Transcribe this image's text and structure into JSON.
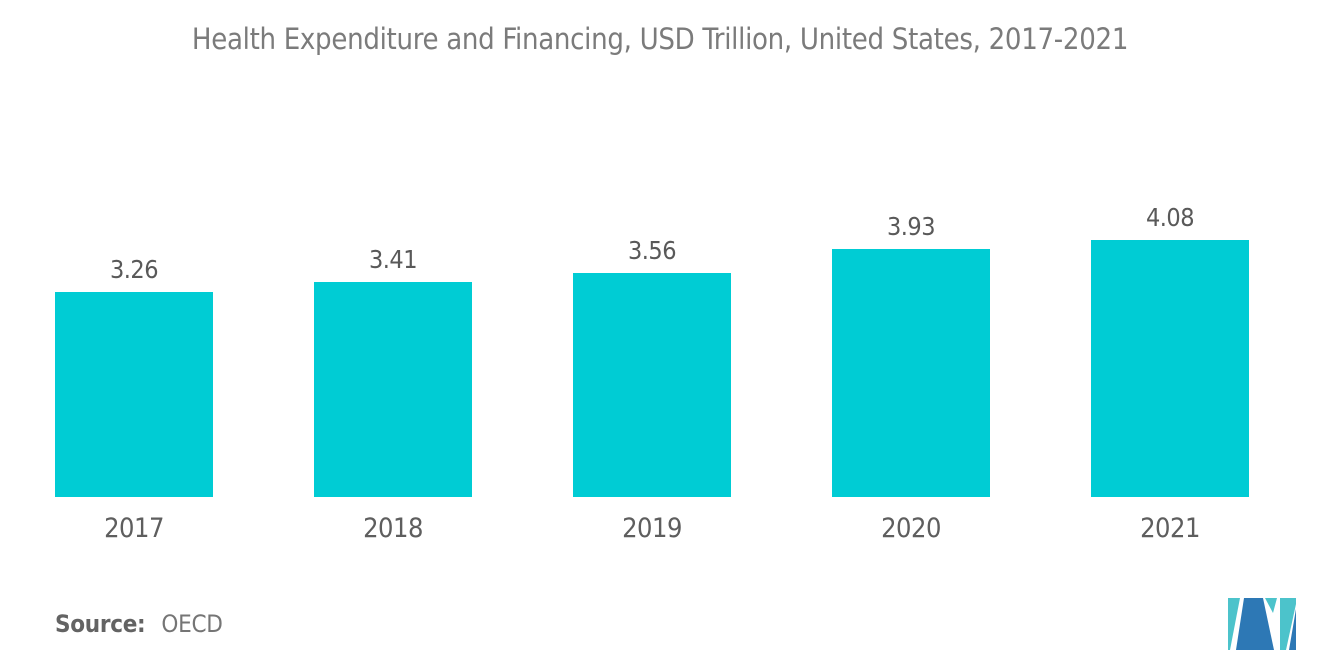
{
  "chart_data": {
    "type": "bar",
    "title": "Health Expenditure and Financing, USD Trillion, United States, 2017-2021",
    "categories": [
      "2017",
      "2018",
      "2019",
      "2020",
      "2021"
    ],
    "values": [
      3.26,
      3.41,
      3.56,
      3.93,
      4.08
    ],
    "value_labels": [
      "3.26",
      "3.41",
      "3.56",
      "3.93",
      "4.08"
    ],
    "xlabel": "",
    "ylabel": "",
    "ylim": [
      0,
      4.5
    ],
    "grid": false,
    "legend": false,
    "bar_color": "#00ccd4",
    "label_color": "#595959",
    "axis_label_color": "#5e5e5e",
    "title_color": "#7b7b7b"
  },
  "source": {
    "label": "Source:",
    "value": "OECD"
  },
  "logo": {
    "name": "mordor-intelligence-logo",
    "teal": "#4cc3cb",
    "blue": "#2d78b5"
  }
}
